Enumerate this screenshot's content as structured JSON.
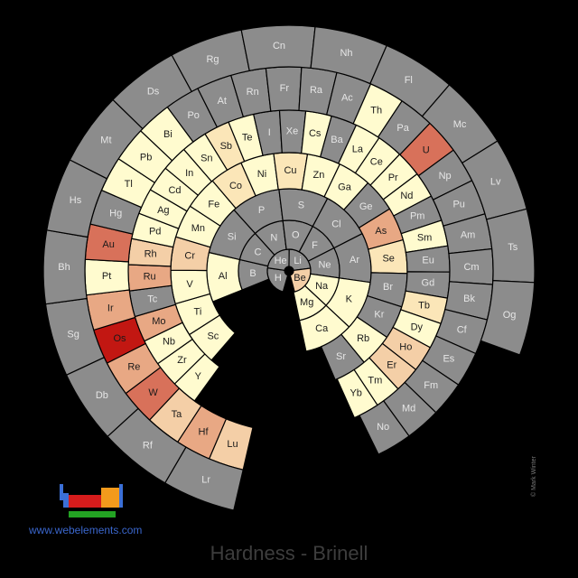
{
  "title": "Hardness - Brinell",
  "website": "www.webelements.com",
  "credit": "© Mark Winter",
  "colors": {
    "none": "#8c8c8c",
    "v1": "#fffbcf",
    "v2": "#fbe6b8",
    "v3": "#f4cfa7",
    "v4": "#e8a884",
    "v5": "#d8715a",
    "v6": "#c21712",
    "background": "#000000"
  },
  "elements": [
    {
      "symbol": "H",
      "ring": 1,
      "slot": 0,
      "level": "none"
    },
    {
      "symbol": "He",
      "ring": 1,
      "slot": 1,
      "level": "none"
    },
    {
      "symbol": "Li",
      "ring": 1,
      "slot": 2,
      "level": "none"
    },
    {
      "symbol": "Be",
      "ring": 1,
      "slot": 3,
      "level": "v3"
    },
    {
      "symbol": "B",
      "ring": 2,
      "slot": 0,
      "level": "none"
    },
    {
      "symbol": "C",
      "ring": 2,
      "slot": 1,
      "level": "none"
    },
    {
      "symbol": "N",
      "ring": 2,
      "slot": 2,
      "level": "none"
    },
    {
      "symbol": "O",
      "ring": 2,
      "slot": 3,
      "level": "none"
    },
    {
      "symbol": "F",
      "ring": 2,
      "slot": 4,
      "level": "none"
    },
    {
      "symbol": "Ne",
      "ring": 2,
      "slot": 5,
      "level": "none"
    },
    {
      "symbol": "Na",
      "ring": 2,
      "slot": 6,
      "level": "v1"
    },
    {
      "symbol": "Mg",
      "ring": 2,
      "slot": 7,
      "level": "v1"
    },
    {
      "symbol": "Al",
      "ring": 3,
      "slot": 0,
      "level": "v1"
    },
    {
      "symbol": "Si",
      "ring": 3,
      "slot": 1,
      "level": "none"
    },
    {
      "symbol": "P",
      "ring": 3,
      "slot": 2,
      "level": "none"
    },
    {
      "symbol": "S",
      "ring": 3,
      "slot": 3,
      "level": "none"
    },
    {
      "symbol": "Cl",
      "ring": 3,
      "slot": 4,
      "level": "none"
    },
    {
      "symbol": "Ar",
      "ring": 3,
      "slot": 5,
      "level": "none"
    },
    {
      "symbol": "K",
      "ring": 3,
      "slot": 6,
      "level": "v1"
    },
    {
      "symbol": "Ca",
      "ring": 3,
      "slot": 7,
      "level": "v1"
    },
    {
      "symbol": "Sc",
      "ring": 4,
      "slot": 0,
      "level": "v1"
    },
    {
      "symbol": "Ti",
      "ring": 4,
      "slot": 1,
      "level": "v1"
    },
    {
      "symbol": "V",
      "ring": 4,
      "slot": 2,
      "level": "v1"
    },
    {
      "symbol": "Cr",
      "ring": 4,
      "slot": 3,
      "level": "v3"
    },
    {
      "symbol": "Mn",
      "ring": 4,
      "slot": 4,
      "level": "v1"
    },
    {
      "symbol": "Fe",
      "ring": 4,
      "slot": 5,
      "level": "v1"
    },
    {
      "symbol": "Co",
      "ring": 4,
      "slot": 6,
      "level": "v2"
    },
    {
      "symbol": "Ni",
      "ring": 4,
      "slot": 7,
      "level": "v1"
    },
    {
      "symbol": "Cu",
      "ring": 4,
      "slot": 8,
      "level": "v2"
    },
    {
      "symbol": "Zn",
      "ring": 4,
      "slot": 9,
      "level": "v1"
    },
    {
      "symbol": "Ga",
      "ring": 4,
      "slot": 10,
      "level": "v1"
    },
    {
      "symbol": "Ge",
      "ring": 4,
      "slot": 11,
      "level": "none"
    },
    {
      "symbol": "As",
      "ring": 4,
      "slot": 12,
      "level": "v4"
    },
    {
      "symbol": "Se",
      "ring": 4,
      "slot": 13,
      "level": "v2"
    },
    {
      "symbol": "Br",
      "ring": 4,
      "slot": 14,
      "level": "none"
    },
    {
      "symbol": "Kr",
      "ring": 4,
      "slot": 15,
      "level": "none"
    },
    {
      "symbol": "Rb",
      "ring": 4,
      "slot": 16,
      "level": "v1"
    },
    {
      "symbol": "Sr",
      "ring": 4,
      "slot": 17,
      "level": "none"
    },
    {
      "symbol": "Y",
      "ring": 5,
      "slot": 0,
      "level": "v1"
    },
    {
      "symbol": "Zr",
      "ring": 5,
      "slot": 1,
      "level": "v1"
    },
    {
      "symbol": "Nb",
      "ring": 5,
      "slot": 2,
      "level": "v1"
    },
    {
      "symbol": "Mo",
      "ring": 5,
      "slot": 3,
      "level": "v4"
    },
    {
      "symbol": "Tc",
      "ring": 5,
      "slot": 4,
      "level": "none"
    },
    {
      "symbol": "Ru",
      "ring": 5,
      "slot": 5,
      "level": "v4"
    },
    {
      "symbol": "Rh",
      "ring": 5,
      "slot": 6,
      "level": "v3"
    },
    {
      "symbol": "Pd",
      "ring": 5,
      "slot": 7,
      "level": "v1"
    },
    {
      "symbol": "Ag",
      "ring": 5,
      "slot": 8,
      "level": "v1"
    },
    {
      "symbol": "Cd",
      "ring": 5,
      "slot": 9,
      "level": "v1"
    },
    {
      "symbol": "In",
      "ring": 5,
      "slot": 10,
      "level": "v1"
    },
    {
      "symbol": "Sn",
      "ring": 5,
      "slot": 11,
      "level": "v1"
    },
    {
      "symbol": "Sb",
      "ring": 5,
      "slot": 12,
      "level": "v2"
    },
    {
      "symbol": "Te",
      "ring": 5,
      "slot": 13,
      "level": "v1"
    },
    {
      "symbol": "I",
      "ring": 5,
      "slot": 14,
      "level": "none"
    },
    {
      "symbol": "Xe",
      "ring": 5,
      "slot": 15,
      "level": "none"
    },
    {
      "symbol": "Cs",
      "ring": 5,
      "slot": 16,
      "level": "v1"
    },
    {
      "symbol": "Ba",
      "ring": 5,
      "slot": 17,
      "level": "none"
    },
    {
      "symbol": "La",
      "ring": 5,
      "slot": 18,
      "level": "v1"
    },
    {
      "symbol": "Ce",
      "ring": 5,
      "slot": 19,
      "level": "v1"
    },
    {
      "symbol": "Pr",
      "ring": 5,
      "slot": 20,
      "level": "v1"
    },
    {
      "symbol": "Nd",
      "ring": 5,
      "slot": 21,
      "level": "v1"
    },
    {
      "symbol": "Pm",
      "ring": 5,
      "slot": 22,
      "level": "none"
    },
    {
      "symbol": "Sm",
      "ring": 5,
      "slot": 23,
      "level": "v1"
    },
    {
      "symbol": "Eu",
      "ring": 5,
      "slot": 24,
      "level": "none"
    },
    {
      "symbol": "Gd",
      "ring": 5,
      "slot": 25,
      "level": "none"
    },
    {
      "symbol": "Tb",
      "ring": 5,
      "slot": 26,
      "level": "v2"
    },
    {
      "symbol": "Dy",
      "ring": 5,
      "slot": 27,
      "level": "v1"
    },
    {
      "symbol": "Ho",
      "ring": 5,
      "slot": 28,
      "level": "v3"
    },
    {
      "symbol": "Er",
      "ring": 5,
      "slot": 29,
      "level": "v3"
    },
    {
      "symbol": "Tm",
      "ring": 5,
      "slot": 30,
      "level": "v1"
    },
    {
      "symbol": "Yb",
      "ring": 5,
      "slot": 31,
      "level": "v1"
    },
    {
      "symbol": "Lu",
      "ring": 6,
      "slot": 0,
      "level": "v3"
    },
    {
      "symbol": "Hf",
      "ring": 6,
      "slot": 1,
      "level": "v4"
    },
    {
      "symbol": "Ta",
      "ring": 6,
      "slot": 2,
      "level": "v3"
    },
    {
      "symbol": "W",
      "ring": 6,
      "slot": 3,
      "level": "v5"
    },
    {
      "symbol": "Re",
      "ring": 6,
      "slot": 4,
      "level": "v4"
    },
    {
      "symbol": "Os",
      "ring": 6,
      "slot": 5,
      "level": "v6"
    },
    {
      "symbol": "Ir",
      "ring": 6,
      "slot": 6,
      "level": "v4"
    },
    {
      "symbol": "Pt",
      "ring": 6,
      "slot": 7,
      "level": "v1"
    },
    {
      "symbol": "Au",
      "ring": 6,
      "slot": 8,
      "level": "v5"
    },
    {
      "symbol": "Hg",
      "ring": 6,
      "slot": 9,
      "level": "none"
    },
    {
      "symbol": "Tl",
      "ring": 6,
      "slot": 10,
      "level": "v1"
    },
    {
      "symbol": "Pb",
      "ring": 6,
      "slot": 11,
      "level": "v1"
    },
    {
      "symbol": "Bi",
      "ring": 6,
      "slot": 12,
      "level": "v1"
    },
    {
      "symbol": "Po",
      "ring": 6,
      "slot": 13,
      "level": "none"
    },
    {
      "symbol": "At",
      "ring": 6,
      "slot": 14,
      "level": "none"
    },
    {
      "symbol": "Rn",
      "ring": 6,
      "slot": 15,
      "level": "none"
    },
    {
      "symbol": "Fr",
      "ring": 6,
      "slot": 16,
      "level": "none"
    },
    {
      "symbol": "Ra",
      "ring": 6,
      "slot": 17,
      "level": "none"
    },
    {
      "symbol": "Ac",
      "ring": 6,
      "slot": 18,
      "level": "none"
    },
    {
      "symbol": "Th",
      "ring": 6,
      "slot": 19,
      "level": "v1"
    },
    {
      "symbol": "Pa",
      "ring": 6,
      "slot": 20,
      "level": "none"
    },
    {
      "symbol": "U",
      "ring": 6,
      "slot": 21,
      "level": "v5"
    },
    {
      "symbol": "Np",
      "ring": 6,
      "slot": 22,
      "level": "none"
    },
    {
      "symbol": "Pu",
      "ring": 6,
      "slot": 23,
      "level": "none"
    },
    {
      "symbol": "Am",
      "ring": 6,
      "slot": 24,
      "level": "none"
    },
    {
      "symbol": "Cm",
      "ring": 6,
      "slot": 25,
      "level": "none"
    },
    {
      "symbol": "Bk",
      "ring": 6,
      "slot": 26,
      "level": "none"
    },
    {
      "symbol": "Cf",
      "ring": 6,
      "slot": 27,
      "level": "none"
    },
    {
      "symbol": "Es",
      "ring": 6,
      "slot": 28,
      "level": "none"
    },
    {
      "symbol": "Fm",
      "ring": 6,
      "slot": 29,
      "level": "none"
    },
    {
      "symbol": "Md",
      "ring": 6,
      "slot": 30,
      "level": "none"
    },
    {
      "symbol": "No",
      "ring": 6,
      "slot": 31,
      "level": "none"
    },
    {
      "symbol": "Lr",
      "ring": 7,
      "slot": 0,
      "level": "none"
    },
    {
      "symbol": "Rf",
      "ring": 7,
      "slot": 1,
      "level": "none"
    },
    {
      "symbol": "Db",
      "ring": 7,
      "slot": 2,
      "level": "none"
    },
    {
      "symbol": "Sg",
      "ring": 7,
      "slot": 3,
      "level": "none"
    },
    {
      "symbol": "Bh",
      "ring": 7,
      "slot": 4,
      "level": "none"
    },
    {
      "symbol": "Hs",
      "ring": 7,
      "slot": 5,
      "level": "none"
    },
    {
      "symbol": "Mt",
      "ring": 7,
      "slot": 6,
      "level": "none"
    },
    {
      "symbol": "Ds",
      "ring": 7,
      "slot": 7,
      "level": "none"
    },
    {
      "symbol": "Rg",
      "ring": 7,
      "slot": 8,
      "level": "none"
    },
    {
      "symbol": "Cn",
      "ring": 7,
      "slot": 9,
      "level": "none"
    },
    {
      "symbol": "Nh",
      "ring": 7,
      "slot": 10,
      "level": "none"
    },
    {
      "symbol": "Fl",
      "ring": 7,
      "slot": 11,
      "level": "none"
    },
    {
      "symbol": "Mc",
      "ring": 7,
      "slot": 12,
      "level": "none"
    },
    {
      "symbol": "Lv",
      "ring": 7,
      "slot": 13,
      "level": "none"
    },
    {
      "symbol": "Ts",
      "ring": 7,
      "slot": 14,
      "level": "none"
    },
    {
      "symbol": "Og",
      "ring": 7,
      "slot": 15,
      "level": "none"
    }
  ]
}
